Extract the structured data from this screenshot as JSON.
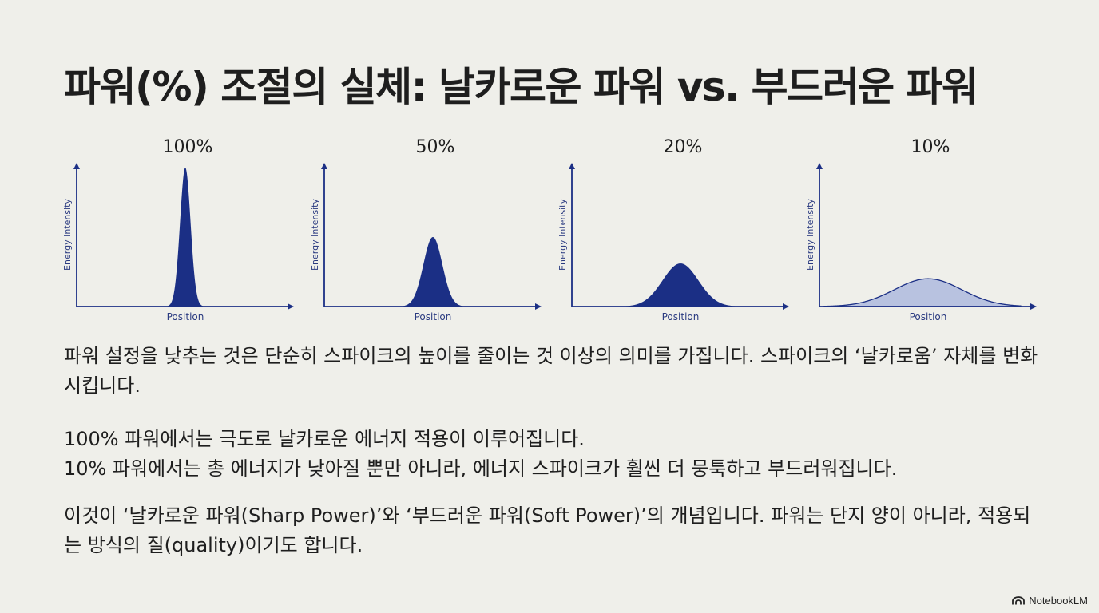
{
  "title": "파워(%) 조절의 실체: 날카로운 파워 vs. 부드러운 파워",
  "chart_data": [
    {
      "type": "area",
      "title": "100%",
      "xlabel": "Position",
      "ylabel": "Energy Intensity",
      "peak": 1.0,
      "width": 0.025,
      "fill_color": "#1b2f85"
    },
    {
      "type": "area",
      "title": "50%",
      "xlabel": "Position",
      "ylabel": "Energy Intensity",
      "peak": 0.5,
      "width": 0.045,
      "fill_color": "#1b2f85"
    },
    {
      "type": "area",
      "title": "20%",
      "xlabel": "Position",
      "ylabel": "Energy Intensity",
      "peak": 0.31,
      "width": 0.085,
      "fill_color": "#1b2f85"
    },
    {
      "type": "area",
      "title": "10%",
      "xlabel": "Position",
      "ylabel": "Energy Intensity",
      "peak": 0.2,
      "width": 0.16,
      "fill_color": "#b8c2e0"
    }
  ],
  "paragraphs": [
    "파워 설정을 낮추는 것은 단순히 스파이크의 높이를 줄이는 것 이상의 의미를 가집니다. 스파이크의 ‘날카로움’ 자체를 변화시킵니다.",
    "100% 파워에서는 극도로 날카로운 에너지 적용이 이루어집니다.",
    "10% 파워에서는 총 에너지가 낮아질 뿐만 아니라, 에너지 스파이크가 훨씬 더 뭉툭하고 부드러워집니다.",
    "이것이 ‘날카로운 파워(Sharp Power)’와 ‘부드러운 파워(Soft Power)’의 개념입니다. 파워는 단지 양이 아니라, 적용되는 방식의 질(quality)이기도 합니다."
  ],
  "footer": {
    "brand": "NotebookLM"
  },
  "colors": {
    "axis": "#1b2f85",
    "dark_fill": "#1b2f85",
    "light_fill": "#b8c2e0",
    "background": "#efefea"
  }
}
